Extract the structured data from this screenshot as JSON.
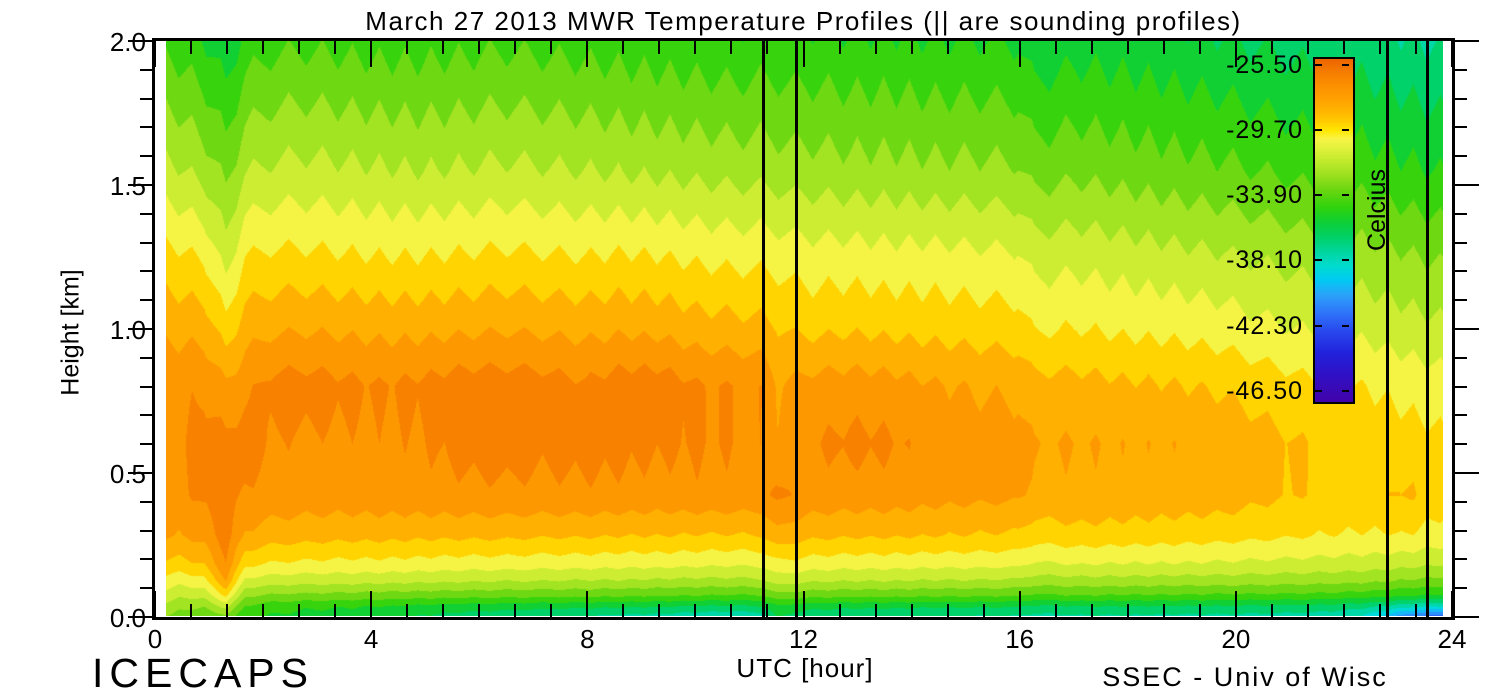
{
  "title": "March 27 2013 MWR Temperature Profiles (|| are sounding profiles)",
  "x_axis": {
    "label": "UTC [hour]",
    "tick_labels": [
      "0",
      "4",
      "8",
      "12",
      "16",
      "20",
      "24"
    ],
    "tick_values": [
      0,
      4,
      8,
      12,
      16,
      20,
      24
    ],
    "range_hours": [
      0,
      24
    ],
    "minor_tick_step_hours": 0.6667
  },
  "y_axis": {
    "label": "Height [km]",
    "tick_labels": [
      "2.0",
      "1.5",
      "1.0",
      "0.5",
      "0.0"
    ],
    "tick_values": [
      2.0,
      1.5,
      1.0,
      0.5,
      0.0
    ],
    "range_km": [
      0,
      2
    ],
    "minor_tick_step_km": 0.1
  },
  "colorbar": {
    "title": "Celcius",
    "tick_labels": [
      "-25.50",
      "-29.70",
      "-33.90",
      "-38.10",
      "-42.30",
      "-46.50"
    ],
    "tick_values": [
      -25.5,
      -29.7,
      -33.9,
      -38.1,
      -42.3,
      -46.5
    ],
    "top_value_c": -25.0,
    "bottom_value_c": -47.1,
    "palette_stops": [
      [
        -25.0,
        "#EE6500"
      ],
      [
        -25.8,
        "#F67D00"
      ],
      [
        -26.6,
        "#FC8F00"
      ],
      [
        -27.4,
        "#FF9F00"
      ],
      [
        -28.2,
        "#FFB200"
      ],
      [
        -29.0,
        "#FFCC00"
      ],
      [
        -29.6,
        "#FFE800"
      ],
      [
        -30.1,
        "#FAF446"
      ],
      [
        -30.8,
        "#E0F23C"
      ],
      [
        -31.6,
        "#C0EA2C"
      ],
      [
        -32.6,
        "#96E01E"
      ],
      [
        -33.6,
        "#62D60E"
      ],
      [
        -34.6,
        "#2ED30E"
      ],
      [
        -35.6,
        "#0CCF3A"
      ],
      [
        -36.6,
        "#00D26E"
      ],
      [
        -37.6,
        "#00D7A8"
      ],
      [
        -38.4,
        "#00DCD2"
      ],
      [
        -39.2,
        "#00CCF2"
      ],
      [
        -40.2,
        "#2BA4FA"
      ],
      [
        -41.4,
        "#2F74FA"
      ],
      [
        -42.6,
        "#2948EE"
      ],
      [
        -44.0,
        "#2222DC"
      ],
      [
        -45.5,
        "#3210C4"
      ],
      [
        -47.1,
        "#4204AA"
      ]
    ]
  },
  "annotations": {
    "project": "ICECAPS",
    "credit": "SSEC - Univ of Wisc"
  },
  "sounding_profile_hours": [
    11.26,
    11.87,
    22.81,
    23.55
  ],
  "chart_data": {
    "type": "heatmap",
    "title": "March 27 2013 MWR Temperature Profiles",
    "xlabel": "UTC [hour]",
    "ylabel": "Height [km]",
    "units": "Celcius",
    "x_range_hours": [
      0,
      24
    ],
    "data_x_range_hours": [
      0.25,
      23.85
    ],
    "y_range_km": [
      0,
      2
    ],
    "contour_interval_c": 1.05,
    "warmest_band_c": -25.5,
    "x_hours": [
      0.25,
      0.5,
      0.95,
      1.35,
      1.7,
      2.2,
      2.8,
      3.5,
      4.2,
      5.0,
      5.8,
      6.5,
      7.2,
      8.0,
      8.7,
      9.4,
      10.1,
      10.8,
      11.26,
      11.55,
      11.87,
      12.2,
      12.9,
      13.6,
      14.4,
      15.2,
      16.0,
      16.3,
      17.1,
      18.0,
      18.9,
      19.8,
      20.7,
      21.6,
      22.3,
      22.81,
      23.05,
      23.3,
      23.55,
      23.85
    ],
    "y_heights_km": [
      0,
      0.03,
      0.07,
      0.12,
      0.18,
      0.28,
      0.42,
      0.6,
      0.8,
      1.0,
      1.25,
      1.55,
      2.0
    ],
    "temps_c_bottom_to_top_per_hour": [
      [
        -32.8,
        -32.2,
        -31.2,
        -30.2,
        -28.9,
        -27.5,
        -26.8,
        -26.7,
        -26.9,
        -27.9,
        -29.4,
        -31.6,
        -34.3
      ],
      [
        -33.2,
        -32.6,
        -31.6,
        -30.4,
        -29.0,
        -27.6,
        -26.8,
        -26.7,
        -26.8,
        -27.9,
        -29.5,
        -31.7,
        -34.4
      ],
      [
        -33.5,
        -32.8,
        -31.4,
        -30.0,
        -28.6,
        -27.2,
        -26.3,
        -26.1,
        -26.7,
        -28.0,
        -29.8,
        -32.2,
        -34.9
      ],
      [
        -33.0,
        -31.5,
        -29.5,
        -27.6,
        -26.6,
        -26.0,
        -25.9,
        -26.3,
        -27.4,
        -29.3,
        -31.3,
        -33.2,
        -35.8
      ],
      [
        -34.6,
        -34.0,
        -32.6,
        -31.0,
        -29.4,
        -27.7,
        -26.7,
        -26.0,
        -26.9,
        -28.1,
        -29.7,
        -31.9,
        -34.6
      ],
      [
        -35.0,
        -34.6,
        -33.0,
        -31.3,
        -29.8,
        -28.1,
        -26.9,
        -26.6,
        -26.2,
        -27.8,
        -29.5,
        -31.6,
        -34.2
      ],
      [
        -35.2,
        -34.8,
        -33.1,
        -31.4,
        -29.9,
        -28.2,
        -27.0,
        -26.7,
        -26.1,
        -27.7,
        -29.5,
        -31.5,
        -34.1
      ],
      [
        -35.3,
        -34.9,
        -33.2,
        -31.4,
        -30.0,
        -28.3,
        -27.0,
        -26.7,
        -26.3,
        -27.8,
        -29.6,
        -31.6,
        -34.2
      ],
      [
        -35.5,
        -35.0,
        -33.3,
        -31.5,
        -30.0,
        -28.3,
        -26.95,
        -26.7,
        -26.5,
        -27.9,
        -29.7,
        -31.7,
        -34.3
      ],
      [
        -36.0,
        -35.3,
        -33.4,
        -31.6,
        -30.1,
        -28.4,
        -26.85,
        -26.6,
        -26.3,
        -27.9,
        -29.7,
        -31.8,
        -34.3
      ],
      [
        -36.4,
        -35.5,
        -33.5,
        -31.7,
        -30.2,
        -28.4,
        -26.8,
        -26.2,
        -26.0,
        -27.8,
        -29.6,
        -31.7,
        -34.2
      ],
      [
        -36.6,
        -35.6,
        -33.5,
        -31.8,
        -30.2,
        -28.4,
        -26.75,
        -26.1,
        -26.0,
        -27.7,
        -29.5,
        -31.6,
        -34.1
      ],
      [
        -36.8,
        -35.7,
        -33.6,
        -31.8,
        -30.3,
        -28.5,
        -26.8,
        -26.3,
        -26.1,
        -27.8,
        -29.6,
        -31.7,
        -34.2
      ],
      [
        -37.0,
        -35.8,
        -33.6,
        -31.9,
        -30.3,
        -28.5,
        -26.75,
        -26.2,
        -26.4,
        -27.9,
        -29.7,
        -31.8,
        -34.3
      ],
      [
        -37.2,
        -35.9,
        -33.7,
        -31.9,
        -30.4,
        -28.6,
        -26.8,
        -26.3,
        -26.0,
        -27.8,
        -29.6,
        -31.9,
        -34.4
      ],
      [
        -37.3,
        -36.0,
        -33.8,
        -32.0,
        -30.4,
        -28.6,
        -26.9,
        -26.4,
        -26.0,
        -27.9,
        -29.7,
        -32.0,
        -34.5
      ],
      [
        -37.6,
        -36.2,
        -33.9,
        -32.1,
        -30.5,
        -28.7,
        -26.75,
        -26.5,
        -26.5,
        -28.2,
        -29.9,
        -32.1,
        -34.6
      ],
      [
        -37.8,
        -36.3,
        -34.0,
        -32.1,
        -30.6,
        -28.7,
        -26.8,
        -26.6,
        -26.6,
        -28.3,
        -30.0,
        -32.2,
        -34.7
      ],
      [
        -37.5,
        -36.1,
        -33.9,
        -32.0,
        -30.5,
        -28.6,
        -26.9,
        -26.7,
        -26.7,
        -28.4,
        -30.0,
        -32.2,
        -34.6
      ],
      [
        -35.8,
        -35.2,
        -33.2,
        -31.3,
        -30.0,
        -27.9,
        -26.2,
        -27.4,
        -27.6,
        -28.6,
        -30.1,
        -32.3,
        -34.6
      ],
      [
        -36.3,
        -35.5,
        -33.3,
        -31.5,
        -30.0,
        -28.2,
        -26.7,
        -26.9,
        -27.4,
        -28.8,
        -30.2,
        -32.4,
        -34.7
      ],
      [
        -36.6,
        -35.7,
        -33.5,
        -31.7,
        -30.2,
        -28.4,
        -26.9,
        -26.6,
        -27.2,
        -28.9,
        -30.3,
        -32.4,
        -34.7
      ],
      [
        -36.8,
        -35.8,
        -33.6,
        -31.8,
        -30.3,
        -28.5,
        -27.0,
        -26.3,
        -27.1,
        -28.8,
        -30.3,
        -32.5,
        -34.8
      ],
      [
        -36.9,
        -35.8,
        -33.6,
        -31.8,
        -30.3,
        -28.5,
        -27.0,
        -26.4,
        -27.2,
        -28.9,
        -30.4,
        -32.5,
        -34.8
      ],
      [
        -36.9,
        -35.9,
        -33.7,
        -31.9,
        -30.4,
        -28.6,
        -27.2,
        -26.9,
        -27.5,
        -29.0,
        -30.4,
        -32.6,
        -34.9
      ],
      [
        -37.0,
        -35.9,
        -33.7,
        -31.9,
        -30.4,
        -28.7,
        -27.3,
        -27.1,
        -27.7,
        -29.1,
        -30.5,
        -32.6,
        -34.9
      ],
      [
        -37.0,
        -36.0,
        -33.8,
        -32.0,
        -30.5,
        -28.8,
        -27.4,
        -27.2,
        -27.8,
        -29.2,
        -30.6,
        -32.7,
        -35.0
      ],
      [
        -37.3,
        -36.3,
        -34.1,
        -32.3,
        -30.9,
        -29.2,
        -27.9,
        -27.6,
        -28.3,
        -29.8,
        -31.2,
        -33.3,
        -35.7
      ],
      [
        -37.1,
        -36.1,
        -33.9,
        -32.2,
        -30.7,
        -29.0,
        -27.8,
        -27.6,
        -28.3,
        -29.7,
        -31.1,
        -33.1,
        -35.4
      ],
      [
        -37.1,
        -36.1,
        -34.0,
        -32.2,
        -30.8,
        -29.1,
        -27.9,
        -27.7,
        -28.5,
        -29.9,
        -31.3,
        -33.3,
        -35.5
      ],
      [
        -37.2,
        -36.2,
        -34.0,
        -32.3,
        -30.8,
        -29.2,
        -28.0,
        -27.7,
        -28.6,
        -30.0,
        -31.5,
        -33.5,
        -35.7
      ],
      [
        -37.2,
        -36.2,
        -34.1,
        -32.3,
        -30.9,
        -29.3,
        -28.1,
        -27.9,
        -28.8,
        -30.2,
        -31.7,
        -33.7,
        -35.9
      ],
      [
        -37.3,
        -36.3,
        -34.1,
        -32.4,
        -31.0,
        -29.5,
        -28.5,
        -28.4,
        -29.2,
        -30.6,
        -32.0,
        -34.0,
        -36.2
      ],
      [
        -37.5,
        -36.4,
        -34.2,
        -32.5,
        -31.1,
        -29.7,
        -28.8,
        -28.8,
        -29.6,
        -30.9,
        -32.3,
        -34.3,
        -36.5
      ],
      [
        -38.0,
        -36.7,
        -34.4,
        -32.6,
        -31.2,
        -29.8,
        -28.9,
        -28.9,
        -29.7,
        -31.0,
        -32.4,
        -34.4,
        -36.6
      ],
      [
        -39.3,
        -37.3,
        -34.6,
        -32.8,
        -31.3,
        -29.8,
        -28.8,
        -29.1,
        -29.9,
        -31.2,
        -32.6,
        -34.6,
        -36.8
      ],
      [
        -40.3,
        -37.7,
        -34.8,
        -32.9,
        -31.4,
        -29.7,
        -28.5,
        -29.2,
        -30.0,
        -31.3,
        -32.7,
        -34.7,
        -36.9
      ],
      [
        -40.8,
        -38.0,
        -34.9,
        -33.0,
        -31.5,
        -29.8,
        -28.6,
        -29.3,
        -30.1,
        -31.4,
        -32.8,
        -34.8,
        -37.0
      ],
      [
        -41.2,
        -38.2,
        -35.0,
        -33.1,
        -31.6,
        -30.0,
        -29.0,
        -29.4,
        -30.2,
        -31.5,
        -32.9,
        -34.9,
        -37.1
      ],
      [
        -41.5,
        -38.3,
        -35.1,
        -33.2,
        -31.7,
        -30.1,
        -29.2,
        -29.5,
        -30.3,
        -31.6,
        -33.0,
        -35.0,
        -37.2
      ]
    ]
  }
}
